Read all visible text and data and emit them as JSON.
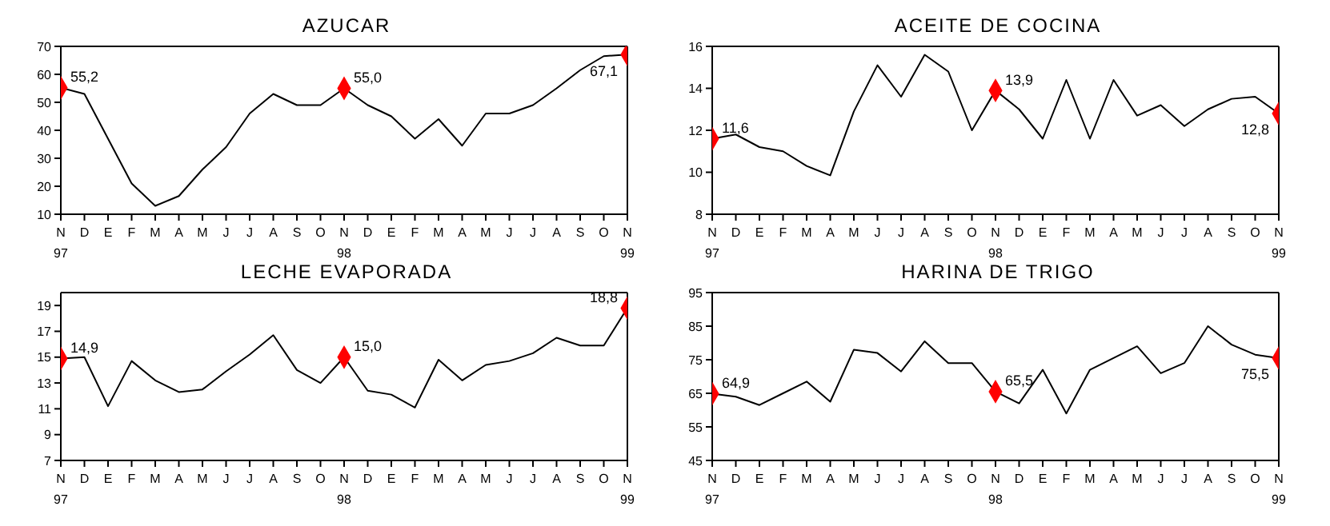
{
  "chart_data": [
    {
      "type": "line",
      "title": "AZUCAR",
      "categories": [
        "N 97",
        "D",
        "E",
        "F",
        "M",
        "A",
        "M",
        "J",
        "J",
        "A",
        "S",
        "O",
        "N 98",
        "D",
        "E",
        "F",
        "M",
        "A",
        "M",
        "J",
        "J",
        "A",
        "S",
        "O",
        "N 99"
      ],
      "series": [
        {
          "color": "#000000",
          "values": [
            55.2,
            53,
            37,
            21,
            13,
            16.5,
            26,
            34,
            46,
            53,
            49,
            49,
            55.0,
            49,
            45,
            37,
            44,
            34.5,
            46,
            46,
            49,
            55,
            61.5,
            66.5,
            67.1
          ]
        },
        {
          "type": "scatter",
          "color": "#ff0000",
          "marker": "diamond",
          "values": [
            55.2,
            null,
            null,
            null,
            null,
            null,
            null,
            null,
            null,
            null,
            null,
            null,
            55.0,
            null,
            null,
            null,
            null,
            null,
            null,
            null,
            null,
            null,
            null,
            null,
            67.1
          ]
        }
      ],
      "ylim": [
        10,
        70
      ],
      "yticks": [
        10,
        20,
        30,
        40,
        50,
        60,
        70
      ],
      "grid": false,
      "annotations": [
        {
          "text": "55,2",
          "x": "N 97",
          "y": 55.2
        },
        {
          "text": "55,0",
          "x": "N 98",
          "y": 55.0
        },
        {
          "text": "67,1",
          "x": "N 99",
          "y": 67.1
        }
      ]
    },
    {
      "type": "line",
      "title": "ACEITE DE COCINA",
      "categories": [
        "N 97",
        "D",
        "E",
        "F",
        "M",
        "A",
        "M",
        "J",
        "J",
        "A",
        "S",
        "O",
        "N 98",
        "D",
        "E",
        "F",
        "M",
        "A",
        "M",
        "J",
        "J",
        "A",
        "S",
        "O",
        "N 99"
      ],
      "series": [
        {
          "color": "#000000",
          "values": [
            11.6,
            11.8,
            11.2,
            11.0,
            10.3,
            9.85,
            12.9,
            15.1,
            13.6,
            15.6,
            14.8,
            12.0,
            13.9,
            13.0,
            11.6,
            14.4,
            11.6,
            14.4,
            12.7,
            13.2,
            12.2,
            13.0,
            13.5,
            13.6,
            12.8
          ]
        },
        {
          "type": "scatter",
          "color": "#ff0000",
          "marker": "diamond",
          "values": [
            11.6,
            null,
            null,
            null,
            null,
            null,
            null,
            null,
            null,
            null,
            null,
            null,
            13.9,
            null,
            null,
            null,
            null,
            null,
            null,
            null,
            null,
            null,
            null,
            null,
            12.8
          ]
        }
      ],
      "ylim": [
        8,
        16
      ],
      "yticks": [
        8,
        10,
        12,
        14,
        16
      ],
      "grid": false,
      "annotations": [
        {
          "text": "11,6",
          "x": "N 97",
          "y": 11.6
        },
        {
          "text": "13,9",
          "x": "N 98",
          "y": 13.9
        },
        {
          "text": "12,8",
          "x": "N 99",
          "y": 12.8
        }
      ]
    },
    {
      "type": "line",
      "title": "LECHE EVAPORADA",
      "categories": [
        "N 97",
        "D",
        "E",
        "F",
        "M",
        "A",
        "M",
        "J",
        "J",
        "A",
        "S",
        "O",
        "N 98",
        "D",
        "E",
        "F",
        "M",
        "A",
        "M",
        "J",
        "J",
        "A",
        "S",
        "O",
        "N 99"
      ],
      "series": [
        {
          "color": "#000000",
          "values": [
            14.9,
            15.0,
            11.2,
            14.7,
            13.2,
            12.3,
            12.5,
            13.9,
            15.2,
            16.7,
            14.0,
            13.0,
            15.0,
            12.4,
            12.1,
            11.1,
            14.8,
            13.2,
            14.4,
            14.7,
            15.3,
            16.5,
            15.9,
            15.9,
            18.8
          ]
        },
        {
          "type": "scatter",
          "color": "#ff0000",
          "marker": "diamond",
          "values": [
            14.9,
            null,
            null,
            null,
            null,
            null,
            null,
            null,
            null,
            null,
            null,
            null,
            15.0,
            null,
            null,
            null,
            null,
            null,
            null,
            null,
            null,
            null,
            null,
            null,
            18.8
          ]
        }
      ],
      "ylim": [
        7,
        20
      ],
      "yticks": [
        7,
        9,
        11,
        13,
        15,
        17,
        19
      ],
      "grid": false,
      "annotations": [
        {
          "text": "14,9",
          "x": "N 97",
          "y": 14.9
        },
        {
          "text": "15,0",
          "x": "N 98",
          "y": 15.0
        },
        {
          "text": "18,8",
          "x": "N 99",
          "y": 18.8
        }
      ]
    },
    {
      "type": "line",
      "title": "HARINA DE TRIGO",
      "categories": [
        "N 97",
        "D",
        "E",
        "F",
        "M",
        "A",
        "M",
        "J",
        "J",
        "A",
        "S",
        "O",
        "N 98",
        "D",
        "E",
        "F",
        "M",
        "A",
        "M",
        "J",
        "J",
        "A",
        "S",
        "O",
        "N 99"
      ],
      "series": [
        {
          "color": "#000000",
          "values": [
            64.9,
            64,
            61.5,
            65,
            68.5,
            62.5,
            78,
            77,
            71.5,
            80.5,
            74,
            74,
            65.5,
            62,
            72,
            59,
            72,
            75.5,
            79,
            71,
            74,
            85,
            79.5,
            76.5,
            75.5
          ]
        },
        {
          "type": "scatter",
          "color": "#ff0000",
          "marker": "diamond",
          "values": [
            64.9,
            null,
            null,
            null,
            null,
            null,
            null,
            null,
            null,
            null,
            null,
            null,
            65.5,
            null,
            null,
            null,
            null,
            null,
            null,
            null,
            null,
            null,
            null,
            null,
            75.5
          ]
        }
      ],
      "ylim": [
        45,
        95
      ],
      "yticks": [
        45,
        55,
        65,
        75,
        85,
        95
      ],
      "grid": false,
      "annotations": [
        {
          "text": "64,9",
          "x": "N 97",
          "y": 64.9
        },
        {
          "text": "65,5",
          "x": "N 98",
          "y": 65.5
        },
        {
          "text": "75,5",
          "x": "N 99",
          "y": 75.5
        }
      ]
    }
  ]
}
